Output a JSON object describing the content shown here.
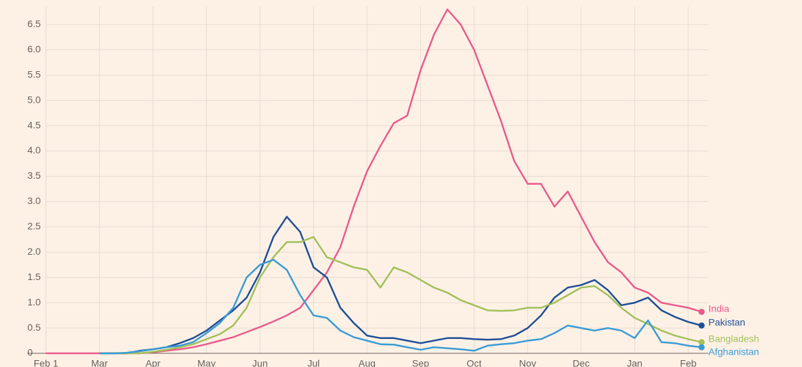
{
  "chart_data": {
    "type": "line",
    "categories": [
      "Feb 1",
      null,
      null,
      null,
      "Mar",
      null,
      null,
      null,
      "Apr",
      null,
      null,
      null,
      "May",
      null,
      null,
      null,
      "Jun",
      null,
      null,
      null,
      "Jul",
      null,
      null,
      null,
      "Aug",
      null,
      null,
      null,
      "Sep",
      null,
      null,
      null,
      "Oct",
      null,
      null,
      null,
      "Nov",
      null,
      null,
      null,
      "Dec",
      null,
      null,
      null,
      "Jan",
      null,
      null,
      null,
      "Feb",
      null
    ],
    "series": [
      {
        "name": "India",
        "color": "#e95b8a",
        "values": [
          0,
          0,
          0,
          0,
          0,
          0,
          0,
          0,
          0.02,
          0.05,
          0.08,
          0.12,
          0.18,
          0.25,
          0.32,
          0.42,
          0.52,
          0.63,
          0.75,
          0.9,
          1.25,
          1.6,
          2.1,
          2.9,
          3.6,
          4.1,
          4.55,
          4.7,
          5.6,
          6.3,
          6.8,
          6.5,
          6.0,
          5.3,
          4.6,
          3.8,
          3.35,
          3.35,
          2.9,
          3.2,
          2.7,
          2.2,
          1.8,
          1.6,
          1.3,
          1.2,
          1.0,
          0.95,
          0.9,
          0.82
        ]
      },
      {
        "name": "Pakistan",
        "color": "#1f4e96",
        "values": [
          null,
          null,
          null,
          null,
          0,
          0,
          0,
          0.05,
          0.08,
          0.12,
          0.2,
          0.3,
          0.45,
          0.65,
          0.85,
          1.1,
          1.6,
          2.3,
          2.7,
          2.4,
          1.7,
          1.5,
          0.9,
          0.6,
          0.35,
          0.3,
          0.3,
          0.25,
          0.2,
          0.25,
          0.3,
          0.3,
          0.28,
          0.27,
          0.28,
          0.35,
          0.5,
          0.75,
          1.1,
          1.3,
          1.35,
          1.45,
          1.25,
          0.95,
          1.0,
          1.1,
          0.85,
          0.72,
          0.62,
          0.55
        ]
      },
      {
        "name": "Bangladesh",
        "color": "#a2c05a",
        "values": [
          null,
          null,
          null,
          null,
          0,
          0,
          0,
          0,
          0.03,
          0.07,
          0.12,
          0.18,
          0.28,
          0.38,
          0.55,
          0.9,
          1.5,
          1.9,
          2.2,
          2.2,
          2.3,
          1.9,
          1.8,
          1.7,
          1.65,
          1.3,
          1.7,
          1.6,
          1.45,
          1.3,
          1.2,
          1.05,
          0.95,
          0.85,
          0.84,
          0.85,
          0.9,
          0.9,
          1.0,
          1.15,
          1.3,
          1.33,
          1.15,
          0.9,
          0.7,
          0.58,
          0.45,
          0.35,
          0.28,
          0.22
        ]
      },
      {
        "name": "Afghanistan",
        "color": "#3a9bd5",
        "values": [
          null,
          null,
          null,
          null,
          0,
          0,
          0.01,
          0.04,
          0.08,
          0.12,
          0.15,
          0.22,
          0.4,
          0.6,
          0.9,
          1.5,
          1.75,
          1.85,
          1.65,
          1.15,
          0.75,
          0.7,
          0.45,
          0.32,
          0.25,
          0.18,
          0.17,
          0.12,
          0.07,
          0.12,
          0.1,
          0.08,
          0.05,
          0.15,
          0.18,
          0.2,
          0.25,
          0.28,
          0.4,
          0.55,
          0.5,
          0.45,
          0.5,
          0.45,
          0.3,
          0.65,
          0.22,
          0.2,
          0.15,
          0.12
        ]
      }
    ],
    "ylim": [
      0,
      6.85
    ],
    "yticks": [
      0,
      0.5,
      {
        "value": 1,
        "label": "1.0"
      },
      1.5,
      {
        "value": 2,
        "label": "2.0"
      },
      2.5,
      {
        "value": 3,
        "label": "3.0"
      },
      3.5,
      {
        "value": 4,
        "label": "4.0"
      },
      4.5,
      {
        "value": 5,
        "label": "5.0"
      },
      5.5,
      {
        "value": 6,
        "label": "6.0"
      },
      6.5
    ],
    "grid": true
  }
}
